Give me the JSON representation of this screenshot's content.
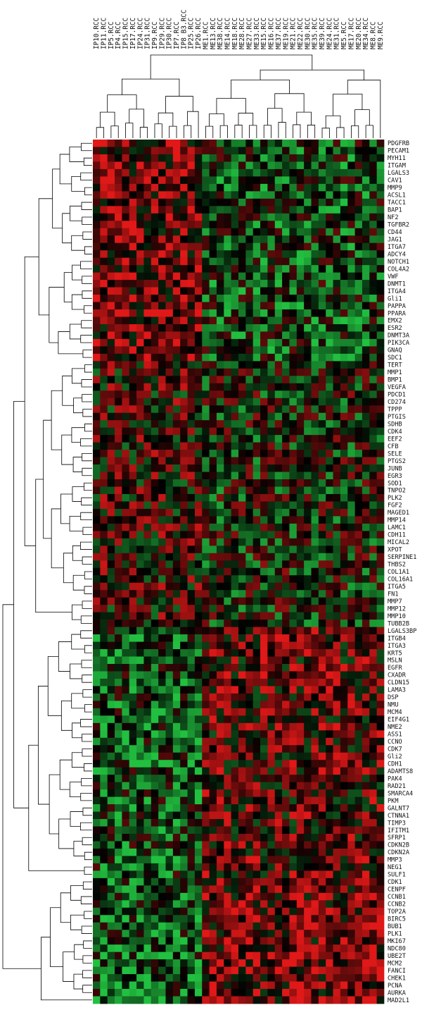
{
  "chart_data": {
    "type": "heatmap",
    "title": "",
    "xlabel": "",
    "ylabel": "",
    "color_scale": {
      "low": "#22c040",
      "mid": "#000000",
      "high": "#e01818"
    },
    "columns": [
      "IP10.RCC",
      "IP11.RCC",
      "IP5.RCC",
      "IP4.RCC",
      "IP15.RCC",
      "IP17.RCC",
      "IP24.RCC",
      "IP31.RCC",
      "IP9.RCC",
      "IP29.RCC",
      "IP30.RCC",
      "IP7.RCC",
      "IP8 B3.RCC",
      "IP25.RCC",
      "IP26.RCC",
      "ME1.RCC",
      "ME13.RCC",
      "ME38.RCC",
      "ME14.RCC",
      "ME18.RCC",
      "ME28.RCC",
      "ME27.RCC",
      "ME33.RCC",
      "ME15.RCC",
      "ME16.RCC",
      "ME37.RCC",
      "ME19.RCC",
      "ME21.RCC",
      "ME22.RCC",
      "ME30.RCC",
      "ME35.RCC",
      "ME39.RCC",
      "ME24.RCC",
      "ME31.RCC",
      "ME5.RCC",
      "ME17.RCC",
      "ME20.RCC",
      "ME34.RCC",
      "ME8.RCC",
      "ME9.RCC"
    ],
    "rows": [
      "PDGFRB",
      "PECAM1",
      "MYH11",
      "ITGAM",
      "LGALS3",
      "CAV1",
      "MMP9",
      "ACSL1",
      "TACC1",
      "BAP1",
      "NF2",
      "TGFBR2",
      "CD44",
      "JAG1",
      "ITGA7",
      "ADCY4",
      "NOTCH1",
      "COL4A2",
      "VWF",
      "DNMT1",
      "ITGA4",
      "Gli1",
      "PAPPA",
      "PPARA",
      "EMX2",
      "ESR2",
      "DNMT3A",
      "PIK3CA",
      "GNAQ",
      "SDC1",
      "TERT",
      "MMP1",
      "BMP1",
      "VEGFA",
      "PDCD1",
      "CD274",
      "TPPP",
      "PTGIS",
      "SDHB",
      "CDK4",
      "EEF2",
      "CFB",
      "SELE",
      "PTGS2",
      "JUNB",
      "EGR3",
      "SOD1",
      "TNPO2",
      "PLK2",
      "FGF2",
      "MAGED1",
      "MMP14",
      "LAMC1",
      "CDH11",
      "MICAL2",
      "XPOT",
      "SERPINE1",
      "THBS2",
      "COL1A1",
      "COL16A1",
      "ITGA5",
      "FN1",
      "MMP7",
      "MMP12",
      "MMP10",
      "TUBB2B",
      "LGALS3BP",
      "ITGB4",
      "ITGA3",
      "KRT5",
      "MSLN",
      "EGFR",
      "CXADR",
      "CLDN15",
      "LAMA3",
      "DSP",
      "NMU",
      "MCM4",
      "EIF4G1",
      "NME2",
      "ASS1",
      "CCNO",
      "CDK7",
      "Gli2",
      "CDH1",
      "ADAMTS8",
      "PAK4",
      "RAD21",
      "SMARCA4",
      "PKM",
      "GALNT7",
      "CTNNA1",
      "TIMP3",
      "IFITM1",
      "SFRP1",
      "CDKN2B",
      "CDKN2A",
      "MMP3",
      "NEG1",
      "SULF1",
      "CDK1",
      "CENPF",
      "CCNB1",
      "CCNB2",
      "TOP2A",
      "BIRC5",
      "BUB1",
      "PLK1",
      "MKI67",
      "NDC80",
      "UBE2T",
      "MCM2",
      "FANCI",
      "CHEK1",
      "PCNA",
      "AURKA",
      "MAD2L1"
    ],
    "groups": [
      {
        "col_start": 0,
        "col_end": 15,
        "row_start": 0,
        "row_end": 30,
        "level": 0.45
      },
      {
        "col_start": 15,
        "col_end": 40,
        "row_start": 0,
        "row_end": 30,
        "level": -0.3
      },
      {
        "col_start": 0,
        "col_end": 15,
        "row_start": 30,
        "row_end": 66,
        "level": 0.15
      },
      {
        "col_start": 15,
        "col_end": 40,
        "row_start": 30,
        "row_end": 66,
        "level": -0.1
      },
      {
        "col_start": 0,
        "col_end": 15,
        "row_start": 66,
        "row_end": 100,
        "level": -0.35
      },
      {
        "col_start": 15,
        "col_end": 40,
        "row_start": 66,
        "row_end": 100,
        "level": 0.3
      },
      {
        "col_start": 0,
        "col_end": 15,
        "row_start": 100,
        "row_end": 117,
        "level": -0.45
      },
      {
        "col_start": 15,
        "col_end": 40,
        "row_start": 100,
        "row_end": 117,
        "level": 0.45
      }
    ]
  }
}
